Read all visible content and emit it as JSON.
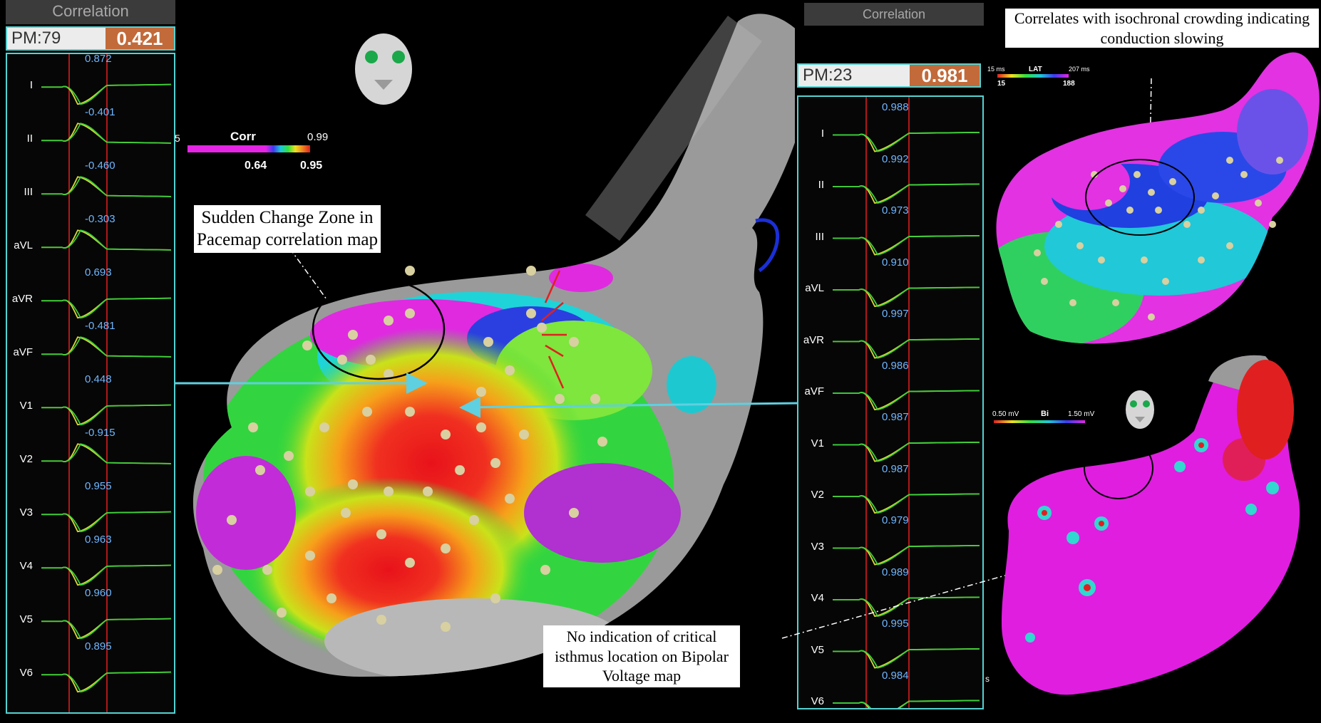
{
  "left_panel": {
    "header": "Correlation",
    "pm_label": "PM:79",
    "pm_value": "0.421",
    "pm_color": "#c26a3a",
    "leads": [
      {
        "name": "I",
        "corr": "0.872"
      },
      {
        "name": "II",
        "corr": "-0.401"
      },
      {
        "name": "III",
        "corr": "-0.460"
      },
      {
        "name": "aVL",
        "corr": "-0.303"
      },
      {
        "name": "aVR",
        "corr": "0.693"
      },
      {
        "name": "aVF",
        "corr": "-0.481"
      },
      {
        "name": "V1",
        "corr": "0.448"
      },
      {
        "name": "V2",
        "corr": "-0.915"
      },
      {
        "name": "V3",
        "corr": "0.955"
      },
      {
        "name": "V4",
        "corr": "0.963"
      },
      {
        "name": "V5",
        "corr": "0.960"
      },
      {
        "name": "V6",
        "corr": "0.895"
      }
    ]
  },
  "right_panel": {
    "header": "Correlation",
    "pm_label": "PM:23",
    "pm_value": "0.981",
    "pm_color": "#c26a3a",
    "leads": [
      {
        "name": "I",
        "corr": "0.988"
      },
      {
        "name": "II",
        "corr": "0.992"
      },
      {
        "name": "III",
        "corr": "0.973"
      },
      {
        "name": "aVL",
        "corr": "0.910"
      },
      {
        "name": "aVR",
        "corr": "0.997"
      },
      {
        "name": "aVF",
        "corr": "0.986"
      },
      {
        "name": "V1",
        "corr": "0.987"
      },
      {
        "name": "V2",
        "corr": "0.987"
      },
      {
        "name": "V3",
        "corr": "0.979"
      },
      {
        "name": "V4",
        "corr": "0.989"
      },
      {
        "name": "V5",
        "corr": "0.995"
      },
      {
        "name": "V6",
        "corr": "0.984"
      }
    ]
  },
  "corr_scale": {
    "title": "Corr",
    "max": "0.99",
    "low": "0.64",
    "high": "0.95",
    "edge": "5"
  },
  "lat_scale": {
    "title": "LAT",
    "min_top": "15 ms",
    "max_top": "207 ms",
    "low": "15",
    "high": "188"
  },
  "bi_scale": {
    "title": "Bi",
    "min": "0.50 mV",
    "max": "1.50 mV"
  },
  "annotations": {
    "sudden_change": "Sudden Change Zone in Pacemap correlation map",
    "isochronal": "Correlates with isochronal crowding indicating conduction slowing",
    "bipolar": "No indication of critical isthmus location on Bipolar Voltage map"
  },
  "stray_label": "s",
  "colors": {
    "panel_border": "#55d2d2",
    "arrow": "#5fd0e0",
    "corr_value": "#6fb7ff"
  }
}
